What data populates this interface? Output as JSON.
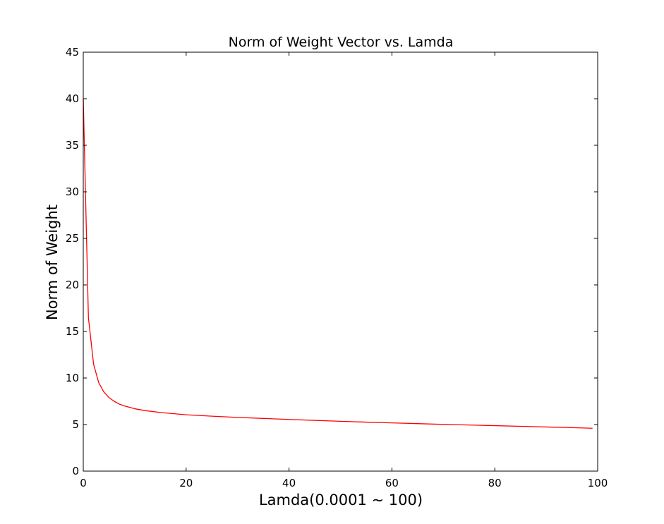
{
  "chart_data": {
    "type": "line",
    "title": "Norm of Weight Vector vs. Lamda",
    "xlabel": "Lamda(0.0001 ~ 100)",
    "ylabel": "Norm of Weight",
    "xlim": [
      0,
      100
    ],
    "ylim": [
      0,
      45
    ],
    "xticks": [
      0,
      20,
      40,
      60,
      80,
      100
    ],
    "yticks": [
      0,
      5,
      10,
      15,
      20,
      25,
      30,
      35,
      40,
      45
    ],
    "grid": false,
    "legend": "none",
    "series": [
      {
        "color": "#ff0000",
        "x": [
          0,
          1,
          2,
          3,
          4,
          5,
          6,
          7,
          8,
          10,
          12,
          15,
          20,
          25,
          30,
          35,
          40,
          45,
          50,
          55,
          60,
          65,
          70,
          75,
          80,
          85,
          90,
          95,
          99
        ],
        "y": [
          40.0,
          16.5,
          11.5,
          9.5,
          8.5,
          7.9,
          7.5,
          7.2,
          7.0,
          6.7,
          6.5,
          6.3,
          6.05,
          5.9,
          5.77,
          5.66,
          5.55,
          5.45,
          5.35,
          5.26,
          5.18,
          5.1,
          5.02,
          4.95,
          4.88,
          4.81,
          4.74,
          4.67,
          4.6
        ]
      }
    ]
  }
}
